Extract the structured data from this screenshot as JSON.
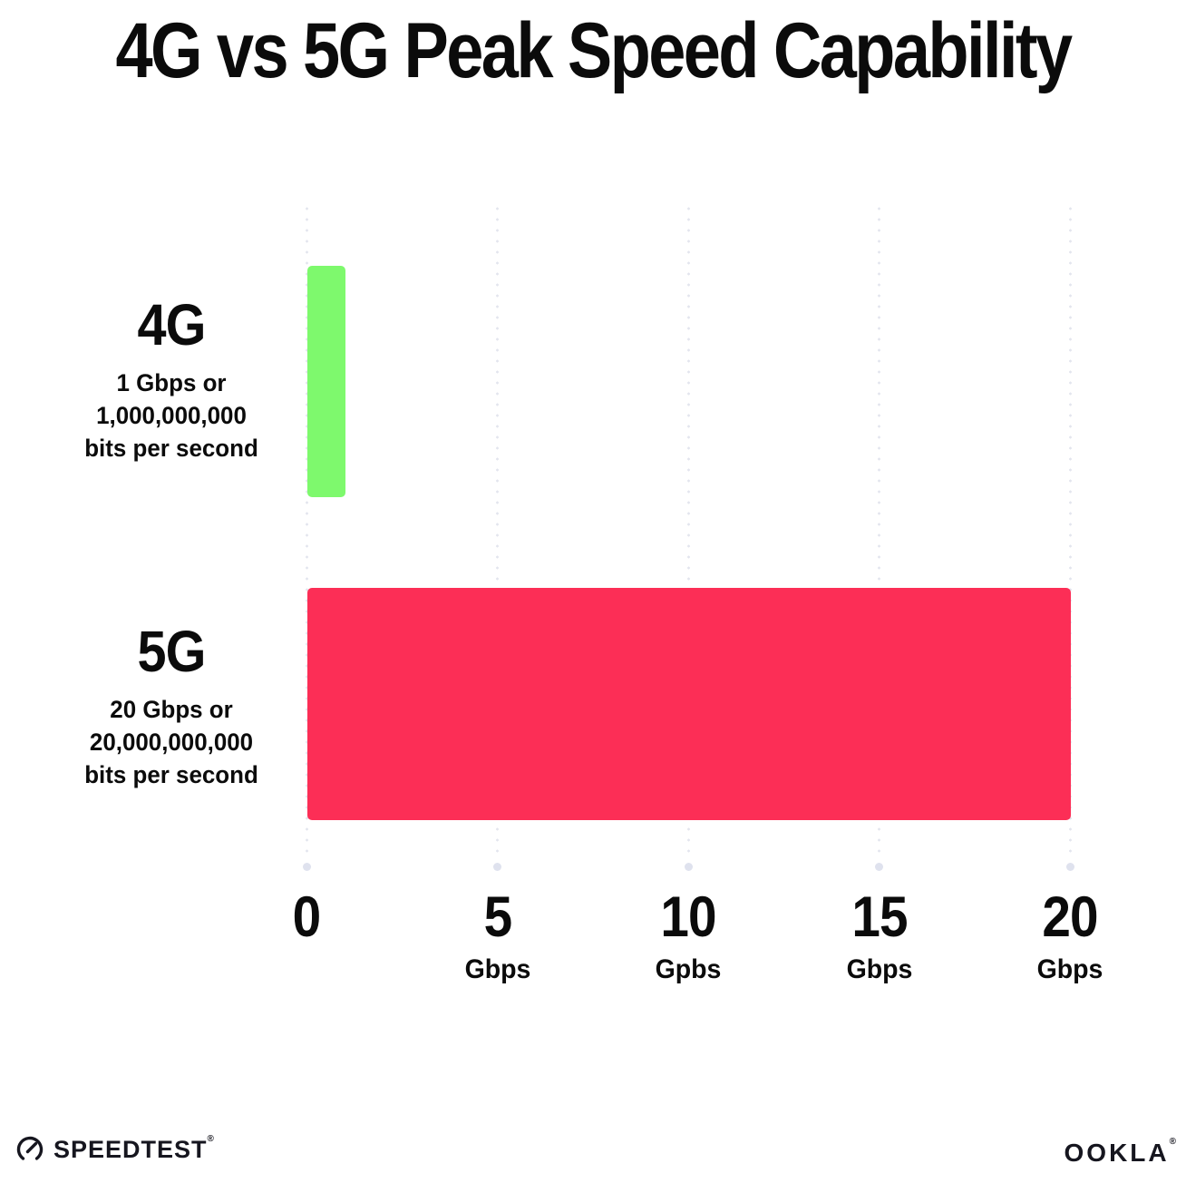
{
  "title": "4G vs 5G Peak Speed Capability",
  "chart_data": {
    "type": "bar",
    "orientation": "horizontal",
    "title": "4G vs 5G Peak Speed Capability",
    "categories": [
      "4G",
      "5G"
    ],
    "values": [
      1,
      20
    ],
    "unit": "Gbps",
    "xlim": [
      0,
      20
    ],
    "xlabel": "",
    "ylabel": "",
    "grid": "dotted-vertical-gridlines",
    "legend": "none",
    "bar_colors": [
      "#7ef96d",
      "#fc2e56"
    ],
    "x_ticks": [
      {
        "num": "0",
        "unit": ""
      },
      {
        "num": "5",
        "unit": "Gbps"
      },
      {
        "num": "10",
        "unit": "Gpbs"
      },
      {
        "num": "15",
        "unit": "Gbps"
      },
      {
        "num": "20",
        "unit": "Gbps"
      }
    ],
    "annotations": [
      {
        "category": "4G",
        "lines": [
          "1 Gbps or",
          "1,000,000,000",
          "bits per second"
        ]
      },
      {
        "category": "5G",
        "lines": [
          "20 Gbps or",
          "20,000,000,000",
          "bits per second"
        ]
      }
    ]
  },
  "footer": {
    "speedtest_brand": "SPEEDTEST",
    "speedtest_tm": "®",
    "ookla_brand": "OOKLA",
    "ookla_tm": "®"
  },
  "colors": {
    "background": "#ffffff",
    "text": "#0b0b0b",
    "bar_4g": "#7ef96d",
    "bar_5g": "#fc2e56",
    "grid_dot": "#e3e5ee",
    "grid_end_dot": "#dfe2ee"
  }
}
